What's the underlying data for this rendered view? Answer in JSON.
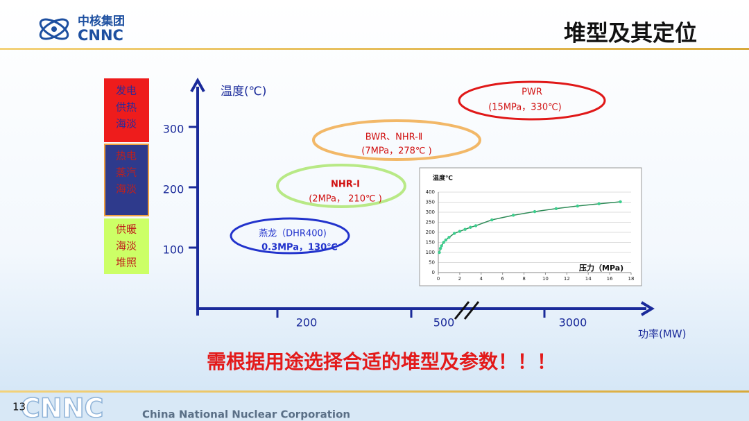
{
  "header": {
    "logo_cn": "中核集团",
    "logo_en": "CNNC",
    "title": "堆型及其定位"
  },
  "sidebar": [
    {
      "lines": [
        "发电",
        "供热",
        "海淡"
      ]
    },
    {
      "lines": [
        "热电",
        "蒸汽",
        "海淡"
      ]
    },
    {
      "lines": [
        "供暖",
        "海淡",
        "堆照"
      ]
    }
  ],
  "diagram": {
    "y_label": "温度(℃)",
    "yticks": [
      100,
      200,
      300
    ],
    "x_label": "功率(MW)",
    "xticks": [
      200,
      500,
      3000
    ],
    "reactors": [
      {
        "name": "PWR",
        "params": "(15MPa，330℃)"
      },
      {
        "name": "BWR、NHR-Ⅱ",
        "params": "(7MPa，278℃ )"
      },
      {
        "name": "NHR-Ⅰ",
        "params": "(2MPa， 210℃ )"
      },
      {
        "name": "燕龙（DHR400)",
        "params": "0.3MPa，130℃"
      }
    ]
  },
  "chart_data": {
    "type": "line",
    "y_label": "温度℃",
    "x_label": "压力（MPa)",
    "x": [
      0.1,
      0.2,
      0.3,
      0.5,
      0.7,
      1,
      1.5,
      2,
      2.5,
      3,
      3.5,
      5,
      7,
      9,
      11,
      13,
      15,
      17
    ],
    "values": [
      100,
      120,
      133,
      150,
      162,
      175,
      195,
      205,
      215,
      225,
      233,
      262,
      285,
      303,
      318,
      331,
      342,
      352
    ],
    "color": "#2e8b57",
    "marker_color": "#3ccf8e",
    "xlim": [
      0,
      18
    ],
    "ylim": [
      0,
      400
    ],
    "xticks": [
      0,
      2,
      4,
      6,
      8,
      10,
      12,
      14,
      16,
      18
    ],
    "yticks": [
      0,
      50,
      100,
      150,
      200,
      250,
      300,
      350,
      400
    ],
    "grid": true
  },
  "slogan": "需根据用途选择合适的堆型及参数！！！",
  "footer": {
    "page": "13",
    "brand": "CNNC",
    "company": "China National Nuclear Corporation"
  }
}
